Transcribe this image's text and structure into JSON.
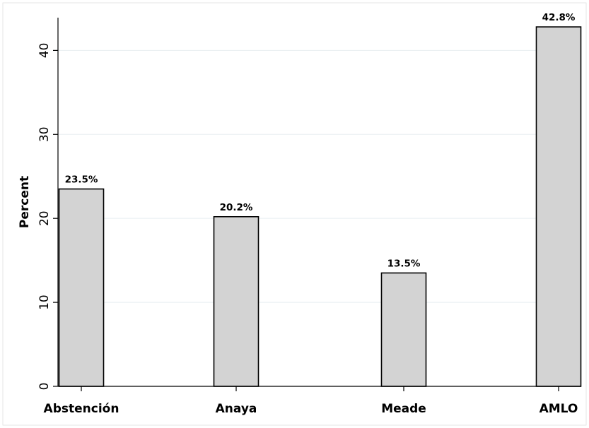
{
  "chart_data": {
    "type": "bar",
    "categories": [
      "Abstención",
      "Anaya",
      "Meade",
      "AMLO"
    ],
    "values": [
      23.5,
      20.2,
      13.5,
      42.8
    ],
    "data_labels": [
      "23.5%",
      "20.2%",
      "13.5%",
      "42.8%"
    ],
    "ylabel": "Percent",
    "yticks": [
      0,
      10,
      20,
      30,
      40
    ],
    "ylim": [
      0,
      43.9
    ],
    "grid": true,
    "colors": {
      "bar_fill": "#d3d3d3",
      "bar_stroke": "#000000",
      "grid": "#e8eef1"
    }
  }
}
